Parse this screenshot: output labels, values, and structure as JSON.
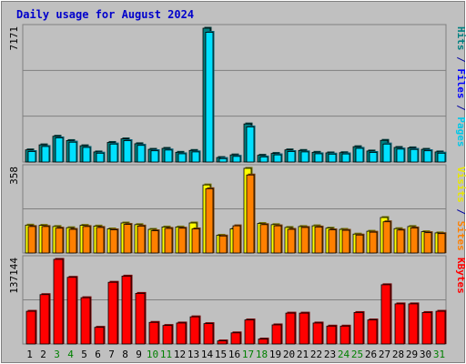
{
  "chart_data": {
    "type": "bar",
    "title": "Daily usage for August 2024",
    "categories": [
      "1",
      "2",
      "3",
      "4",
      "5",
      "6",
      "7",
      "8",
      "9",
      "10",
      "11",
      "12",
      "13",
      "14",
      "15",
      "16",
      "17",
      "18",
      "19",
      "20",
      "21",
      "22",
      "23",
      "24",
      "25",
      "26",
      "27",
      "28",
      "29",
      "30",
      "31"
    ],
    "weekend_days": [
      "3",
      "4",
      "10",
      "11",
      "17",
      "18",
      "24",
      "25",
      "31"
    ],
    "panels": [
      {
        "id": "top",
        "ymax_label": "7171",
        "ylim": [
          0,
          7171
        ],
        "grid": true,
        "series": [
          {
            "name": "Hits",
            "color": "#008080",
            "values": [
              650,
              920,
              1380,
              1150,
              870,
              540,
              1050,
              1240,
              980,
              680,
              730,
              520,
              620,
              7171,
              240,
              380,
              2040,
              360,
              460,
              650,
              620,
              520,
              490,
              500,
              820,
              590,
              1160,
              780,
              760,
              680,
              540
            ]
          },
          {
            "name": "Files",
            "color": "#0000ff",
            "values": [
              560,
              830,
              1290,
              1060,
              780,
              470,
              960,
              1140,
              890,
              600,
              640,
              440,
              540,
              6950,
              180,
              300,
              1880,
              270,
              380,
              560,
              540,
              440,
              420,
              430,
              730,
              510,
              960,
              690,
              670,
              600,
              470
            ]
          },
          {
            "name": "Pages",
            "color": "#00e0ff",
            "values": [
              560,
              830,
              1290,
              1060,
              780,
              470,
              960,
              1140,
              890,
              600,
              640,
              440,
              540,
              6950,
              180,
              300,
              1880,
              270,
              380,
              560,
              540,
              440,
              420,
              430,
              730,
              510,
              960,
              690,
              670,
              600,
              470
            ]
          }
        ],
        "right_label": [
          {
            "text": "Hits",
            "color": "#008080"
          },
          {
            "text": " / ",
            "color": "#0000a0"
          },
          {
            "text": "Files",
            "color": "#0000ff"
          },
          {
            "text": " / ",
            "color": "#0000a0"
          },
          {
            "text": "Pages",
            "color": "#00c8e8"
          }
        ]
      },
      {
        "id": "mid",
        "ymax_label": "358",
        "ylim": [
          0,
          358
        ],
        "grid": true,
        "series": [
          {
            "name": "Visits",
            "color": "#ffff00",
            "values": [
              118,
              117,
              112,
              107,
              117,
              114,
              102,
              127,
              120,
              100,
              110,
              110,
              127,
              288,
              75,
              102,
              358,
              125,
              120,
              108,
              112,
              115,
              105,
              100,
              80,
              92,
              150,
              103,
              112,
              90,
              85
            ]
          },
          {
            "name": "Sites",
            "color": "#ff8000",
            "values": [
              112,
              112,
              105,
              100,
              112,
              108,
              98,
              121,
              114,
              94,
              104,
              105,
              102,
              272,
              72,
              115,
              330,
              120,
              115,
              100,
              108,
              110,
              98,
              96,
              76,
              88,
              132,
              97,
              106,
              86,
              82
            ]
          }
        ],
        "right_label": [
          {
            "text": "Visits",
            "color": "#e8e800"
          },
          {
            "text": " / ",
            "color": "#0000a0"
          },
          {
            "text": "Sites",
            "color": "#ff8000"
          }
        ]
      },
      {
        "id": "bot",
        "ymax_label": "137144",
        "ylim": [
          0,
          137144
        ],
        "grid": true,
        "series": [
          {
            "name": "KBytes",
            "color": "#ff0000",
            "values": [
              53000,
              80000,
              137144,
              108000,
              75000,
              27000,
              100000,
              110000,
              82000,
              35000,
              30000,
              34000,
              44000,
              33000,
              5000,
              18000,
              39000,
              8000,
              31000,
              50000,
              50000,
              34000,
              29000,
              29000,
              51000,
              39000,
              96000,
              65000,
              65000,
              51000,
              53000
            ]
          }
        ],
        "right_label": [
          {
            "text": "KBytes",
            "color": "#ff0000"
          }
        ]
      }
    ]
  }
}
